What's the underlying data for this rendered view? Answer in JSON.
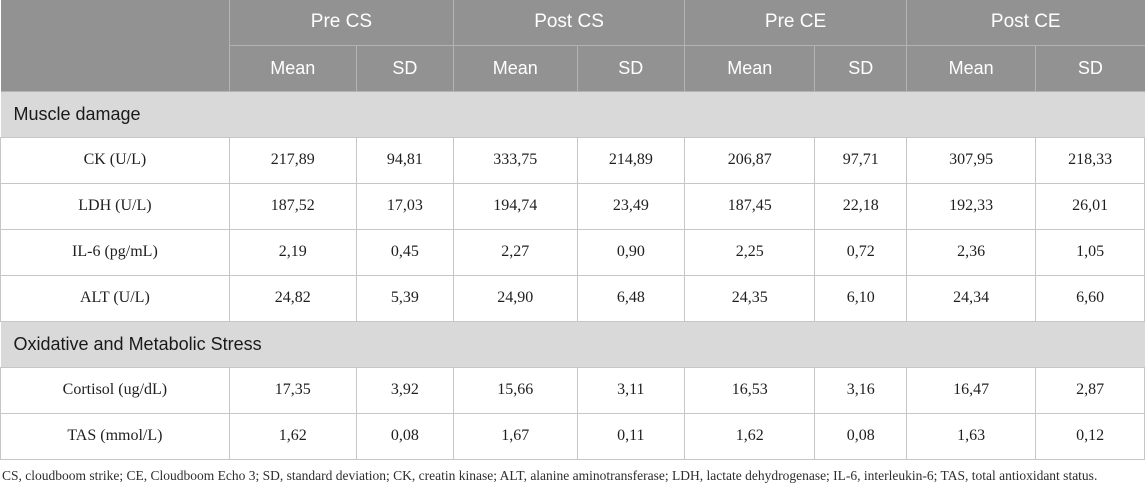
{
  "table": {
    "groups": [
      {
        "label": "Pre CS"
      },
      {
        "label": "Post CS"
      },
      {
        "label": "Pre CE"
      },
      {
        "label": "Post CE"
      }
    ],
    "subheaders": [
      "Mean",
      "SD"
    ],
    "sections": [
      {
        "title": "Muscle damage",
        "rows": [
          {
            "label": "CK (U/L)",
            "values": [
              "217,89",
              "94,81",
              "333,75",
              "214,89",
              "206,87",
              "97,71",
              "307,95",
              "218,33"
            ]
          },
          {
            "label": "LDH (U/L)",
            "values": [
              "187,52",
              "17,03",
              "194,74",
              "23,49",
              "187,45",
              "22,18",
              "192,33",
              "26,01"
            ]
          },
          {
            "label": "IL-6 (pg/mL)",
            "values": [
              "2,19",
              "0,45",
              "2,27",
              "0,90",
              "2,25",
              "0,72",
              "2,36",
              "1,05"
            ]
          },
          {
            "label": "ALT (U/L)",
            "values": [
              "24,82",
              "5,39",
              "24,90",
              "6,48",
              "24,35",
              "6,10",
              "24,34",
              "6,60"
            ]
          }
        ]
      },
      {
        "title": "Oxidative and Metabolic Stress",
        "rows": [
          {
            "label": "Cortisol (ug/dL)",
            "values": [
              "17,35",
              "3,92",
              "15,66",
              "3,11",
              "16,53",
              "3,16",
              "16,47",
              "2,87"
            ]
          },
          {
            "label": "TAS (mmol/L)",
            "values": [
              "1,62",
              "0,08",
              "1,67",
              "0,11",
              "1,62",
              "0,08",
              "1,63",
              "0,12"
            ]
          }
        ]
      }
    ],
    "footnote": "CS, cloudboom strike; CE, Cloudboom Echo 3; SD, standard deviation; CK, creatin kinase; ALT, alanine aminotransferase; LDH, lactate dehydrogenase; IL-6, interleukin-6; TAS, total antioxidant status."
  },
  "colors": {
    "header_bg": "#929292",
    "header_divider": "#b3b3b3",
    "header_text": "#ffffff",
    "section_bg": "#d9d9d9",
    "section_text": "#1a1a1a",
    "body_border": "#c6c6c6",
    "data_text": "#1f1f1f",
    "footnote_text": "#2e2e2e",
    "page_bg": "#ffffff"
  }
}
